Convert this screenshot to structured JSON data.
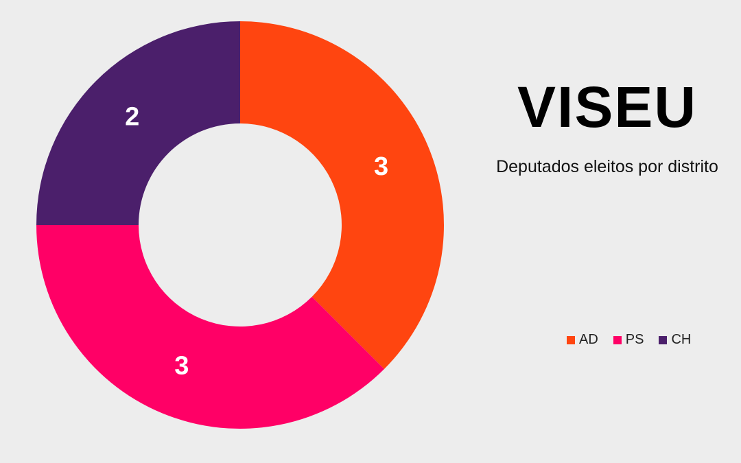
{
  "chart_data": {
    "type": "pie",
    "title": "VISEU",
    "subtitle": "Deputados eleitos por distrito",
    "legend_position": "right",
    "slices": [
      {
        "name": "AD",
        "value": 3,
        "label": "3",
        "color": "#ff4510"
      },
      {
        "name": "PS",
        "value": 3,
        "label": "3",
        "color": "#ff0066"
      },
      {
        "name": "CH",
        "value": 2,
        "label": "2",
        "color": "#4b1f6b"
      }
    ]
  }
}
